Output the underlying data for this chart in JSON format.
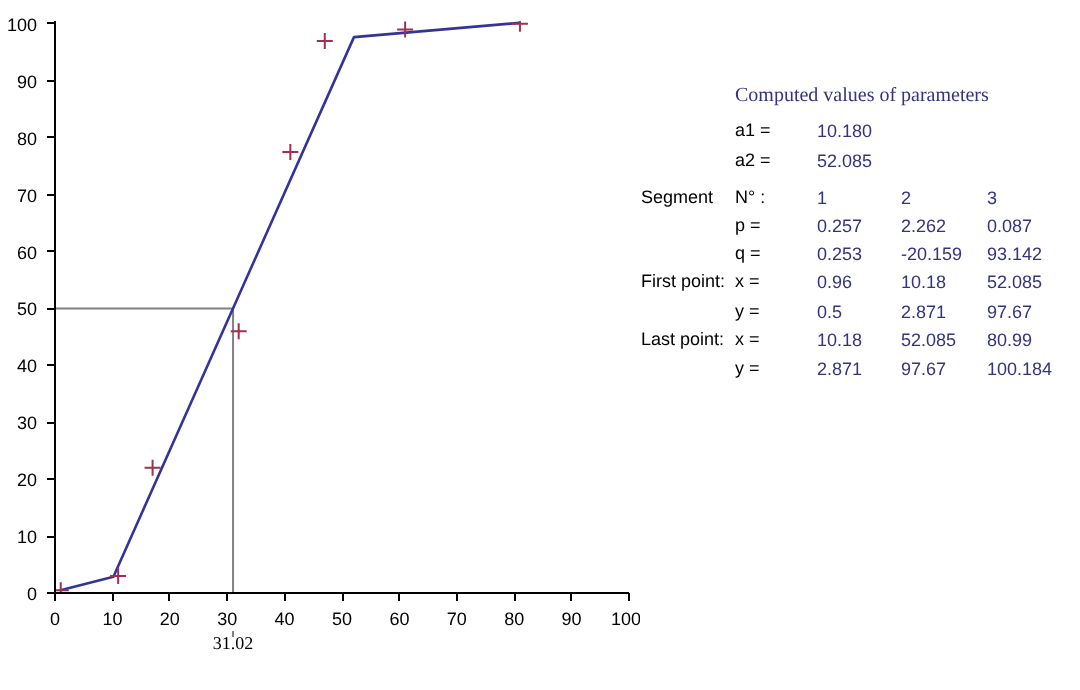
{
  "chart_data": {
    "type": "line",
    "series": [
      {
        "color": "#333399",
        "x": [
          0.96,
          10.18,
          52.085,
          80.99
        ],
        "values": [
          0.5,
          2.871,
          97.67,
          100.184
        ]
      },
      {
        "type": "scatter",
        "color": "#a03050",
        "marker": "cross",
        "x": [
          1,
          11,
          17,
          32,
          41,
          47,
          61,
          81
        ],
        "values": [
          0.5,
          3,
          22,
          46,
          77.5,
          97,
          99,
          100
        ]
      }
    ],
    "xlim": [
      0,
      100
    ],
    "ylim": [
      0,
      100.5
    ],
    "xticks": [
      0,
      10,
      20,
      30,
      40,
      50,
      60,
      70,
      80,
      90,
      100
    ],
    "yticks": [
      0,
      10,
      20,
      30,
      40,
      50,
      60,
      70,
      80,
      90,
      100
    ],
    "grid": false,
    "ref_lines": [
      {
        "axis": "y",
        "value": 50,
        "color": "#808080"
      },
      {
        "axis": "x",
        "value": 31.02,
        "label": "31.02",
        "color": "#808080"
      }
    ],
    "annotations": [
      "Computed values of parameters",
      "a1 =",
      "10.180",
      "a2 =",
      "52.085",
      "Segment",
      "N° :",
      "1",
      "2",
      "3",
      "p =",
      "0.257",
      "2.262",
      "0.087",
      "q =",
      "0.253",
      "-20.159",
      "93.142",
      "First point:",
      "x =",
      "0.96",
      "10.18",
      "52.085",
      "y =",
      "0.5",
      "2.871",
      "97.67",
      "Last point:",
      "x =",
      "10.18",
      "52.085",
      "80.99",
      "y =",
      "2.871",
      "97.67",
      "100.184"
    ]
  }
}
